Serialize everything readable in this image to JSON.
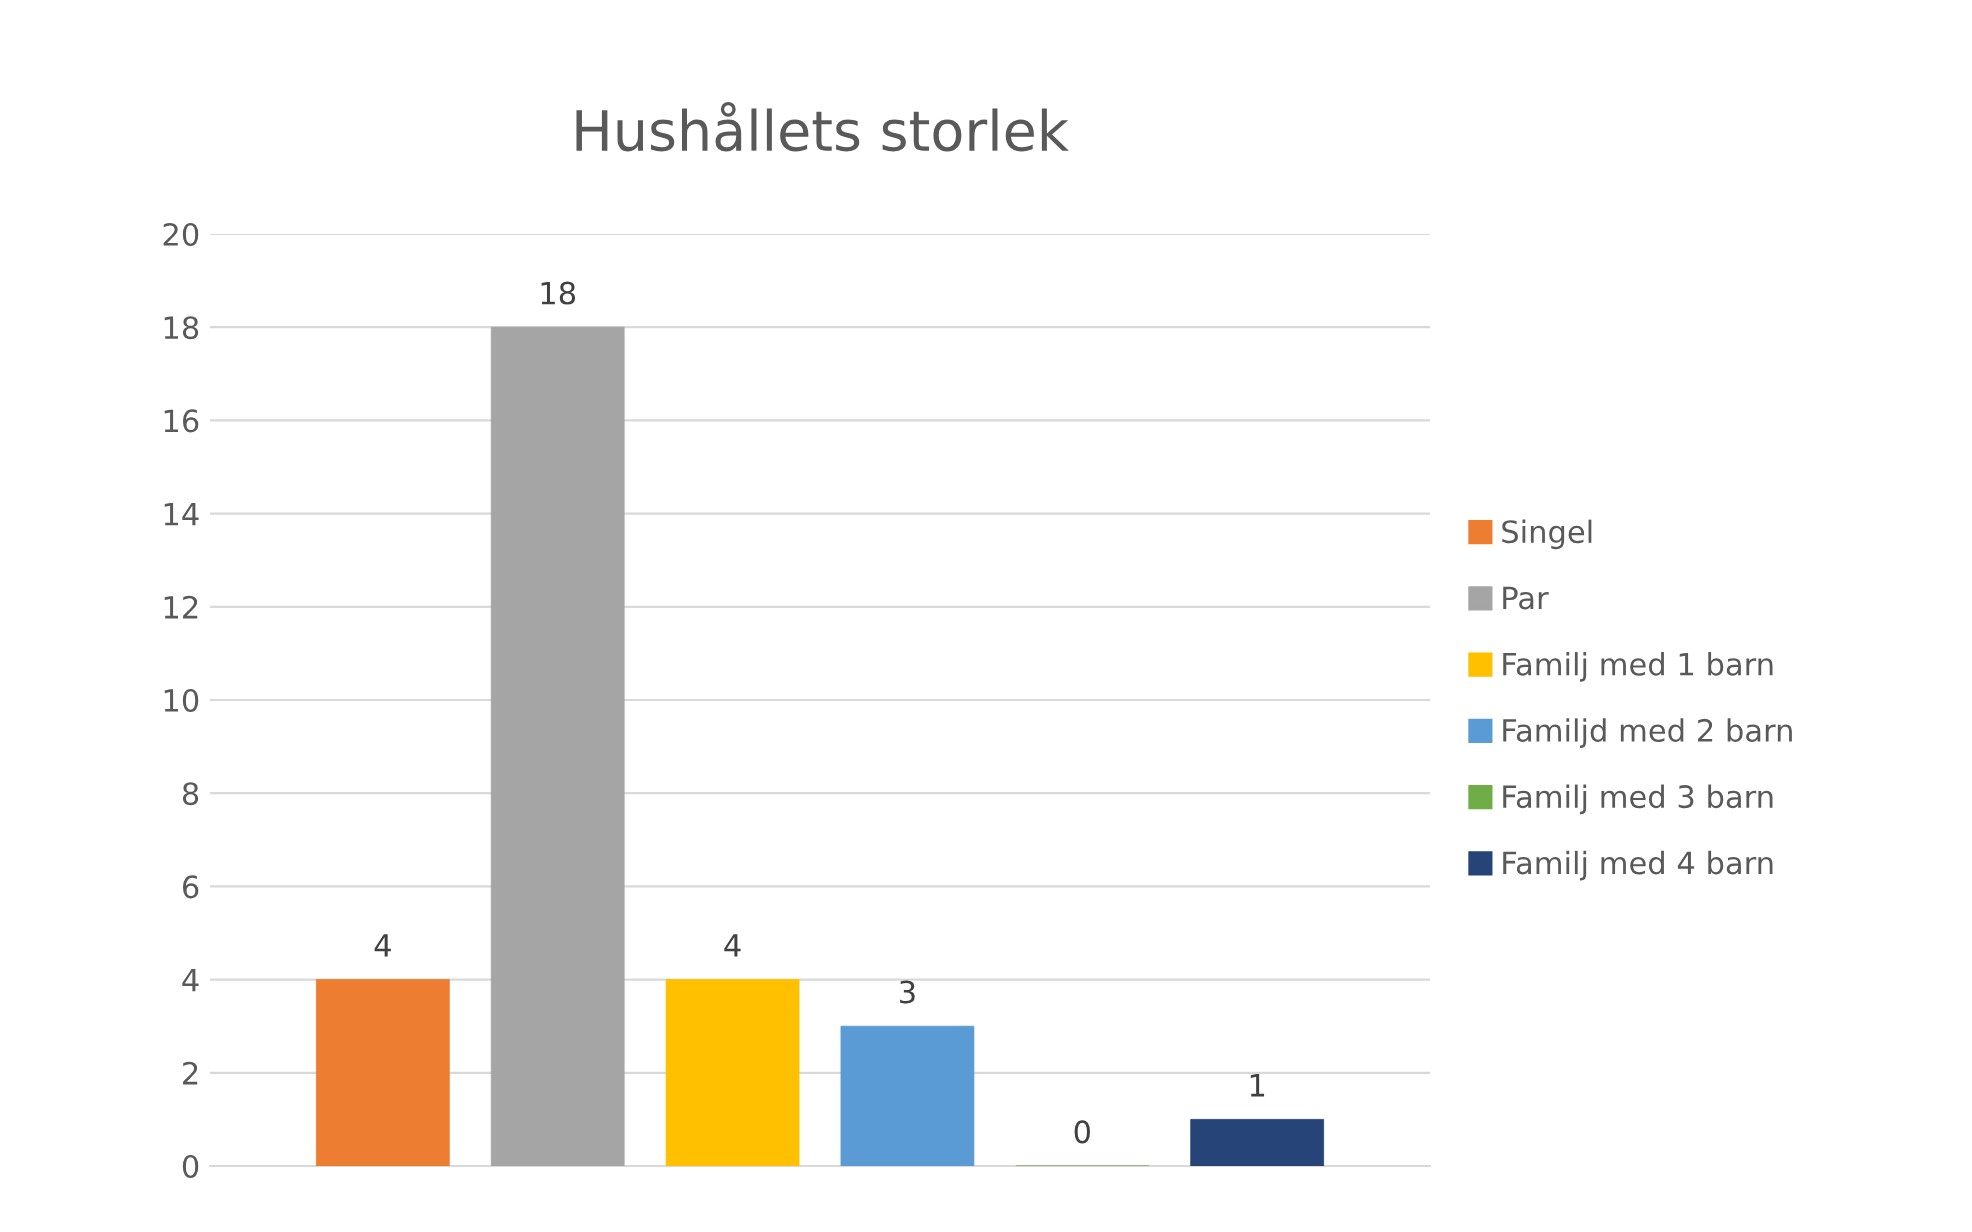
{
  "chart_data": {
    "type": "bar",
    "title": "Hushållets storlek",
    "categories": [
      null
    ],
    "series": [
      {
        "name": "Singel",
        "color": "#ed7d31",
        "values": [
          4
        ]
      },
      {
        "name": "Par",
        "color": "#a5a5a5",
        "values": [
          18
        ]
      },
      {
        "name": "Familj med 1 barn",
        "color": "#ffc000",
        "values": [
          4
        ]
      },
      {
        "name": "Familjd med 2 barn",
        "color": "#5b9bd5",
        "values": [
          3
        ]
      },
      {
        "name": "Familj med 3 barn",
        "color": "#70ad47",
        "values": [
          0
        ]
      },
      {
        "name": "Familj med 4 barn",
        "color": "#264478",
        "values": [
          1
        ]
      }
    ],
    "ylim": [
      0,
      20
    ],
    "yticks": [
      0,
      2,
      4,
      6,
      8,
      10,
      12,
      14,
      16,
      18,
      20
    ],
    "grid": "y",
    "legend": "right",
    "data_labels": true
  }
}
